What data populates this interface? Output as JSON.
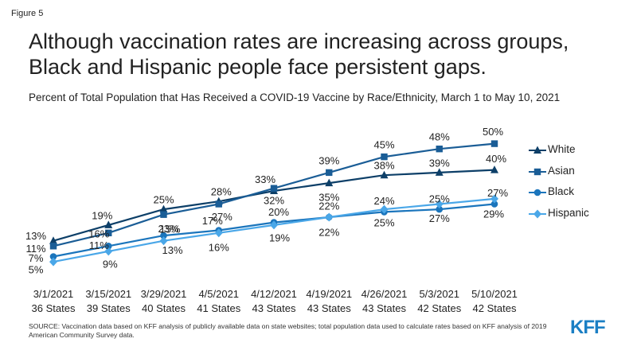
{
  "figure_label": "Figure 5",
  "chart_data": {
    "type": "line",
    "title": "Although vaccination rates are increasing across groups, Black and Hispanic people face persistent gaps.",
    "subtitle": "Percent of Total Population that Has Received a COVID-19 Vaccine by Race/Ethnicity, March 1 to May 10, 2021",
    "categories": [
      {
        "date": "3/1/2021",
        "states": "36 States"
      },
      {
        "date": "3/15/2021",
        "states": "39 States"
      },
      {
        "date": "3/29/2021",
        "states": "40 States"
      },
      {
        "date": "4/5/2021",
        "states": "41 States"
      },
      {
        "date": "4/12/2021",
        "states": "43 States"
      },
      {
        "date": "4/19/2021",
        "states": "43 States"
      },
      {
        "date": "4/26/2021",
        "states": "43 States"
      },
      {
        "date": "5/3/2021",
        "states": "42 States"
      },
      {
        "date": "5/10/2021",
        "states": "42 States"
      }
    ],
    "ylim": [
      0,
      55
    ],
    "series": [
      {
        "name": "White",
        "color": "#0d3f68",
        "marker": "triangle",
        "values": [
          13,
          19,
          25,
          28,
          32,
          35,
          38,
          39,
          40
        ],
        "labels": [
          "13%",
          "19%",
          "25%",
          "28%",
          "32%",
          "35%",
          "38%",
          "39%",
          "40%"
        ]
      },
      {
        "name": "Asian",
        "color": "#1a5d96",
        "marker": "square",
        "values": [
          11,
          16,
          23,
          27,
          33,
          39,
          45,
          48,
          50
        ],
        "labels": [
          "11%",
          "16%",
          "23%",
          "27%",
          "33%",
          "39%",
          "45%",
          "48%",
          "50%"
        ]
      },
      {
        "name": "Black",
        "color": "#1b75bc",
        "marker": "circle",
        "values": [
          7,
          11,
          15,
          17,
          20,
          22,
          24,
          25,
          27
        ],
        "labels": [
          "7%",
          "11%",
          "15%",
          "17%",
          "20%",
          "22%",
          "24%",
          "25%",
          "27%"
        ]
      },
      {
        "name": "Hispanic",
        "color": "#4aa7e8",
        "marker": "diamond",
        "values": [
          5,
          9,
          13,
          16,
          19,
          22,
          25,
          27,
          29
        ],
        "labels": [
          "5%",
          "9%",
          "13%",
          "16%",
          "19%",
          "22%",
          "25%",
          "27%",
          "29%"
        ]
      }
    ]
  },
  "source_text": "SOURCE: Vaccination data based on KFF analysis of publicly available data on state websites; total population data used to calculate rates based on KFF analysis of 2019 American Community Survey data.",
  "logo_text": "KFF"
}
